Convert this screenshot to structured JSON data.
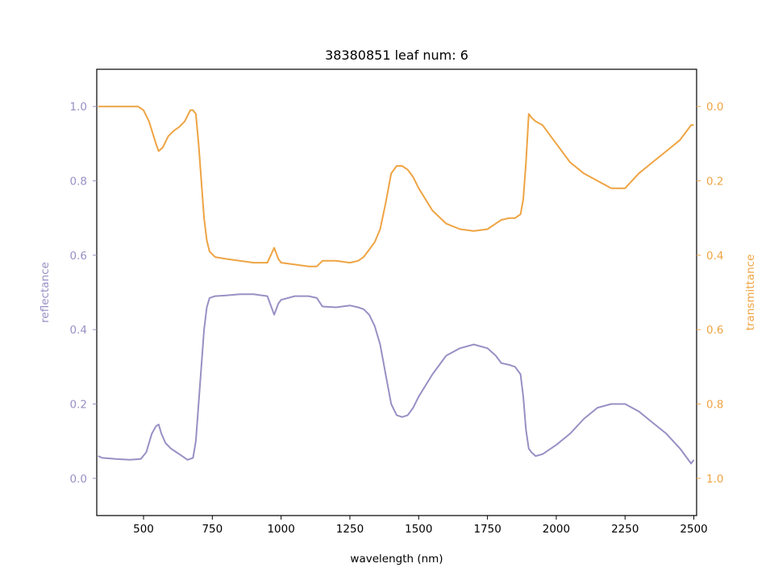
{
  "chart_data": {
    "type": "line",
    "title": "38380851 leaf num: 6",
    "xlabel": "wavelength (nm)",
    "ylabel_left": "reflectance",
    "ylabel_right": "transmittance",
    "xlim": [
      330,
      2510
    ],
    "ylim_left": [
      -0.1,
      1.1
    ],
    "ylim_right": [
      1.1,
      -0.1
    ],
    "right_axis_inverted": true,
    "grid": false,
    "x_ticks": [
      "500",
      "750",
      "1000",
      "1250",
      "1500",
      "1750",
      "2000",
      "2250",
      "2500"
    ],
    "left_ticks": [
      "0.0",
      "0.2",
      "0.4",
      "0.6",
      "0.8",
      "1.0"
    ],
    "right_ticks": [
      "0.0",
      "0.2",
      "0.4",
      "0.6",
      "0.8",
      "1.0"
    ],
    "colors": {
      "reflectance": "#9890c4",
      "transmittance": "#eea443"
    },
    "series": [
      {
        "axis": "left",
        "x": [
          335,
          350,
          400,
          450,
          490,
          510,
          530,
          545,
          555,
          565,
          580,
          600,
          620,
          640,
          660,
          680,
          690,
          700,
          710,
          720,
          730,
          740,
          760,
          800,
          850,
          900,
          950,
          975,
          990,
          1000,
          1050,
          1100,
          1130,
          1150,
          1200,
          1250,
          1280,
          1300,
          1320,
          1340,
          1360,
          1380,
          1400,
          1420,
          1440,
          1460,
          1480,
          1500,
          1550,
          1600,
          1650,
          1700,
          1750,
          1780,
          1800,
          1830,
          1850,
          1870,
          1880,
          1890,
          1900,
          1910,
          1925,
          1950,
          2000,
          2050,
          2100,
          2150,
          2200,
          2250,
          2300,
          2350,
          2400,
          2450,
          2470,
          2490,
          2500
        ],
        "y": [
          0.06,
          0.055,
          0.052,
          0.05,
          0.052,
          0.07,
          0.12,
          0.14,
          0.145,
          0.12,
          0.095,
          0.08,
          0.07,
          0.06,
          0.05,
          0.055,
          0.1,
          0.2,
          0.3,
          0.4,
          0.46,
          0.485,
          0.49,
          0.492,
          0.495,
          0.495,
          0.49,
          0.44,
          0.47,
          0.48,
          0.49,
          0.49,
          0.485,
          0.462,
          0.46,
          0.465,
          0.46,
          0.455,
          0.44,
          0.41,
          0.36,
          0.28,
          0.2,
          0.17,
          0.165,
          0.17,
          0.19,
          0.22,
          0.28,
          0.33,
          0.35,
          0.36,
          0.35,
          0.33,
          0.31,
          0.305,
          0.3,
          0.28,
          0.22,
          0.13,
          0.08,
          0.07,
          0.06,
          0.065,
          0.09,
          0.12,
          0.16,
          0.19,
          0.2,
          0.2,
          0.18,
          0.15,
          0.12,
          0.08,
          0.06,
          0.04,
          0.05
        ]
      },
      {
        "axis": "right",
        "x": [
          335,
          350,
          400,
          450,
          480,
          500,
          520,
          545,
          555,
          570,
          590,
          610,
          630,
          650,
          670,
          680,
          690,
          700,
          710,
          720,
          730,
          740,
          760,
          800,
          850,
          900,
          950,
          975,
          990,
          1000,
          1050,
          1100,
          1130,
          1150,
          1200,
          1250,
          1280,
          1300,
          1320,
          1340,
          1360,
          1380,
          1400,
          1420,
          1440,
          1460,
          1480,
          1500,
          1550,
          1600,
          1650,
          1700,
          1750,
          1780,
          1800,
          1830,
          1850,
          1870,
          1880,
          1890,
          1900,
          1910,
          1925,
          1950,
          2000,
          2050,
          2100,
          2150,
          2200,
          2250,
          2300,
          2350,
          2400,
          2450,
          2470,
          2490,
          2500
        ],
        "y": [
          0.0,
          0.0,
          0.0,
          0.0,
          0.0,
          0.01,
          0.04,
          0.1,
          0.12,
          0.11,
          0.08,
          0.065,
          0.055,
          0.04,
          0.01,
          0.01,
          0.02,
          0.1,
          0.2,
          0.3,
          0.36,
          0.39,
          0.405,
          0.41,
          0.415,
          0.42,
          0.42,
          0.38,
          0.41,
          0.42,
          0.425,
          0.43,
          0.43,
          0.415,
          0.415,
          0.42,
          0.415,
          0.405,
          0.385,
          0.365,
          0.33,
          0.26,
          0.18,
          0.16,
          0.16,
          0.17,
          0.19,
          0.22,
          0.28,
          0.315,
          0.33,
          0.335,
          0.33,
          0.315,
          0.305,
          0.3,
          0.3,
          0.29,
          0.25,
          0.15,
          0.02,
          0.03,
          0.04,
          0.05,
          0.1,
          0.15,
          0.18,
          0.2,
          0.22,
          0.22,
          0.18,
          0.15,
          0.12,
          0.09,
          0.07,
          0.05,
          0.05
        ]
      }
    ]
  }
}
